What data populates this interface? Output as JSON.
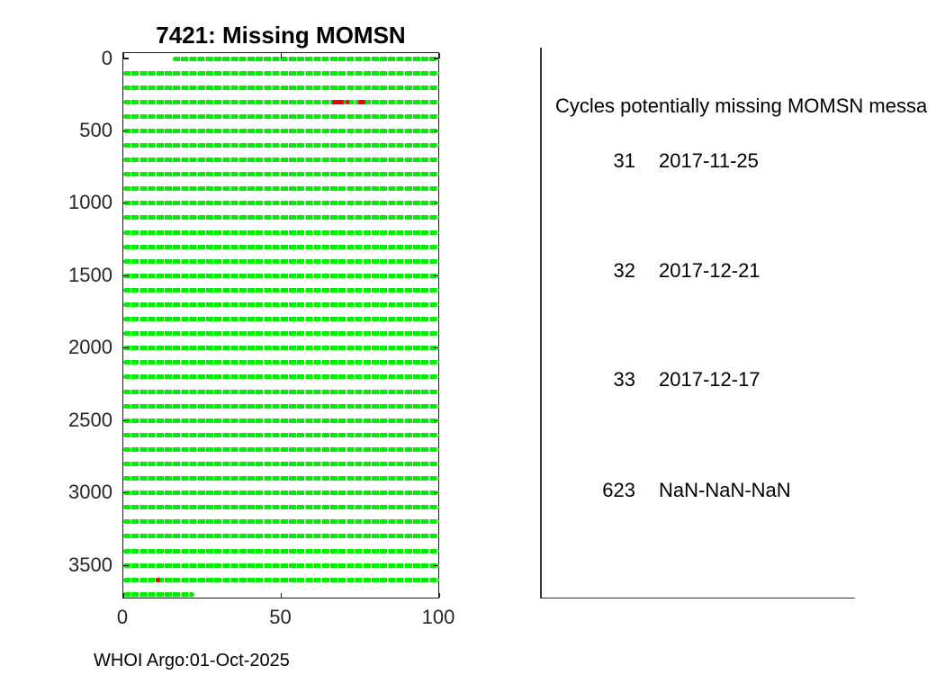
{
  "footer": "WHOI Argo:01-Oct-2025",
  "panel": {
    "header": "Cycles potentially missing MOMSN messa",
    "rows": [
      {
        "cycle": "31",
        "date": "2017-11-25"
      },
      {
        "cycle": "32",
        "date": "2017-12-21"
      },
      {
        "cycle": "33",
        "date": "2017-12-17"
      },
      {
        "cycle": "623",
        "date": "NaN-NaN-NaN"
      }
    ]
  },
  "chart_data": {
    "type": "scatter",
    "title": "7421: Missing MOMSN",
    "xlabel": "",
    "ylabel": "",
    "xlim": [
      0,
      100
    ],
    "ylim": [
      0,
      3700
    ],
    "y_axis_inverted": true,
    "grid": false,
    "x_ticks": [
      0,
      50,
      100
    ],
    "y_ticks": [
      0,
      500,
      1000,
      1500,
      2000,
      2500,
      3000,
      3500
    ],
    "received_color": "#00ee00",
    "missing_color": "#f40000",
    "series": [
      {
        "name": "momsn-received-rows",
        "marker": "green-dots",
        "rows": [
          {
            "y": 0,
            "x0": 15.7,
            "x1": 100
          },
          {
            "y": 100,
            "x0": 0,
            "x1": 100
          },
          {
            "y": 200,
            "x0": 0,
            "x1": 100
          },
          {
            "y": 300,
            "x0": 0,
            "x1": 100
          },
          {
            "y": 400,
            "x0": 0,
            "x1": 100
          },
          {
            "y": 500,
            "x0": 0,
            "x1": 100
          },
          {
            "y": 600,
            "x0": 0,
            "x1": 100
          },
          {
            "y": 700,
            "x0": 0,
            "x1": 100
          },
          {
            "y": 800,
            "x0": 0,
            "x1": 100
          },
          {
            "y": 900,
            "x0": 0,
            "x1": 100
          },
          {
            "y": 1000,
            "x0": 0,
            "x1": 100
          },
          {
            "y": 1100,
            "x0": 0,
            "x1": 100
          },
          {
            "y": 1200,
            "x0": 0,
            "x1": 100
          },
          {
            "y": 1300,
            "x0": 0,
            "x1": 100
          },
          {
            "y": 1400,
            "x0": 0,
            "x1": 100
          },
          {
            "y": 1500,
            "x0": 0,
            "x1": 100
          },
          {
            "y": 1600,
            "x0": 0,
            "x1": 100
          },
          {
            "y": 1700,
            "x0": 0,
            "x1": 100
          },
          {
            "y": 1800,
            "x0": 0,
            "x1": 100
          },
          {
            "y": 1900,
            "x0": 0,
            "x1": 100
          },
          {
            "y": 2000,
            "x0": 0,
            "x1": 100
          },
          {
            "y": 2100,
            "x0": 0,
            "x1": 100
          },
          {
            "y": 2200,
            "x0": 0,
            "x1": 100
          },
          {
            "y": 2300,
            "x0": 0,
            "x1": 100
          },
          {
            "y": 2400,
            "x0": 0,
            "x1": 100
          },
          {
            "y": 2500,
            "x0": 0,
            "x1": 100
          },
          {
            "y": 2600,
            "x0": 0,
            "x1": 100
          },
          {
            "y": 2700,
            "x0": 0,
            "x1": 100
          },
          {
            "y": 2800,
            "x0": 0,
            "x1": 100
          },
          {
            "y": 2900,
            "x0": 0,
            "x1": 100
          },
          {
            "y": 3000,
            "x0": 0,
            "x1": 100
          },
          {
            "y": 3100,
            "x0": 0,
            "x1": 100
          },
          {
            "y": 3200,
            "x0": 0,
            "x1": 100
          },
          {
            "y": 3300,
            "x0": 0,
            "x1": 100
          },
          {
            "y": 3400,
            "x0": 0,
            "x1": 100
          },
          {
            "y": 3500,
            "x0": 0,
            "x1": 100
          },
          {
            "y": 3600,
            "x0": 0,
            "x1": 100
          },
          {
            "y": 3700,
            "x0": 0,
            "x1": 22.5
          }
        ]
      },
      {
        "name": "momsn-missing-markers",
        "marker": "red-dots",
        "segments": [
          {
            "y": 300,
            "x0": 66.1,
            "x1": 69.8
          },
          {
            "y": 300,
            "x0": 70.4,
            "x1": 71.6
          },
          {
            "y": 300,
            "x0": 74.4,
            "x1": 76.5
          },
          {
            "y": 3600,
            "x0": 10.2,
            "x1": 11.8
          }
        ]
      }
    ]
  }
}
